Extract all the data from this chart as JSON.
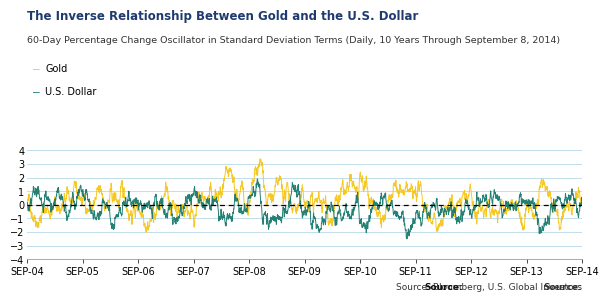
{
  "title": "The Inverse Relationship Between Gold and the U.S. Dollar",
  "subtitle": "60-Day Percentage Change Oscillator in Standard Deviation Terms (Daily, 10 Years Through September 8, 2014)",
  "source_bold": "Source:",
  "source_rest": " Bloomberg, U.S. Global Investors",
  "legend_gold": "Gold",
  "legend_dollar": "U.S. Dollar",
  "gold_color": "#F5C518",
  "dollar_color": "#1A7A6E",
  "background_color": "#FFFFFF",
  "title_color": "#1F3A6E",
  "subtitle_color": "#333333",
  "grid_color": "#B8D8E8",
  "ylim": [
    -4,
    5
  ],
  "yticks": [
    -4,
    -3,
    -2,
    -1,
    0,
    1,
    2,
    3,
    4
  ],
  "xtick_labels": [
    "SEP-04",
    "SEP-05",
    "SEP-06",
    "SEP-07",
    "SEP-08",
    "SEP-09",
    "SEP-10",
    "SEP-11",
    "SEP-12",
    "SEP-13",
    "SEP-14"
  ],
  "n_points": 2500
}
